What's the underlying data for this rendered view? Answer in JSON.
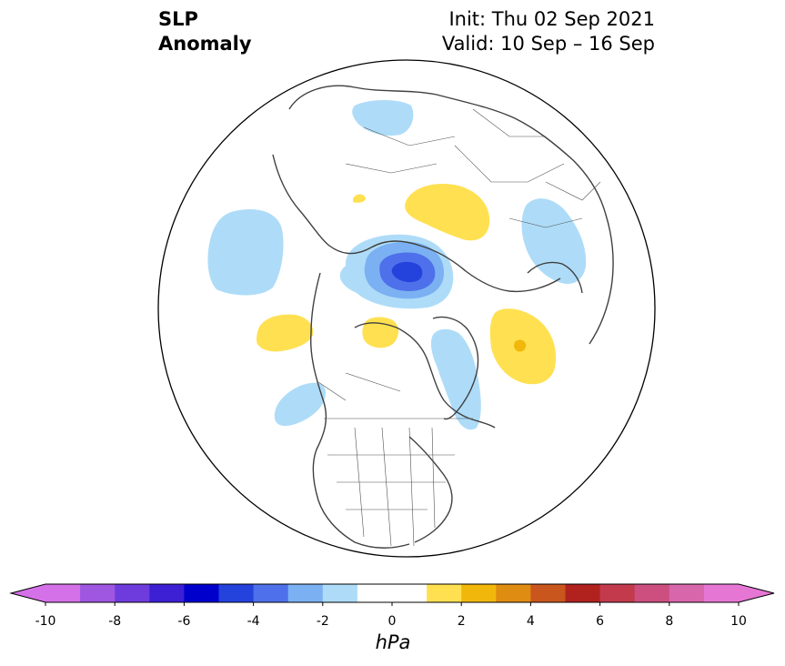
{
  "title": {
    "left_line1": "SLP",
    "left_line2": "Anomaly",
    "right_line1": "Init: Thu 02 Sep 2021",
    "right_line2": "Valid: 10 Sep – 16 Sep"
  },
  "map": {
    "projection": "north-polar-stereographic",
    "variable": "SLP anomaly",
    "anomaly_regions": [
      {
        "region": "north-pacific-west",
        "anomaly_hpa": -1.5
      },
      {
        "region": "siberia-arctic-low",
        "anomaly_hpa": -5
      },
      {
        "region": "north-america-west",
        "anomaly_hpa": -1.5
      },
      {
        "region": "greenland-baffin",
        "anomaly_hpa": -1.5
      },
      {
        "region": "eastern-europe",
        "anomaly_hpa": -1.5
      },
      {
        "region": "atlantic-north",
        "anomaly_hpa": -1.5
      },
      {
        "region": "central-asia",
        "anomaly_hpa": 1.5
      },
      {
        "region": "alaska-west",
        "anomaly_hpa": 1.5
      },
      {
        "region": "arctic-canada",
        "anomaly_hpa": 1.5
      },
      {
        "region": "north-atlantic-iceland",
        "anomaly_hpa": 2.5
      }
    ]
  },
  "colorbar": {
    "unit": "hPa",
    "min": -10,
    "max": 10,
    "step": 1,
    "tick_labels": [
      "-10",
      "-8",
      "-6",
      "-4",
      "-2",
      "0",
      "2",
      "4",
      "6",
      "8",
      "10"
    ],
    "colors": [
      "#d571e8",
      "#9f56e0",
      "#6e3cdc",
      "#3d1fd4",
      "#0000cd",
      "#2442dc",
      "#4e70ea",
      "#7bb1f2",
      "#aedcf8",
      "#ffffff",
      "#ffffff",
      "#ffe050",
      "#f2b70b",
      "#df8c12",
      "#c9561d",
      "#b1221f",
      "#c33a4d",
      "#cc4f80",
      "#d866ab",
      "#e676d4"
    ],
    "extend_low_color": "#d571e8",
    "extend_high_color": "#e676d4"
  }
}
